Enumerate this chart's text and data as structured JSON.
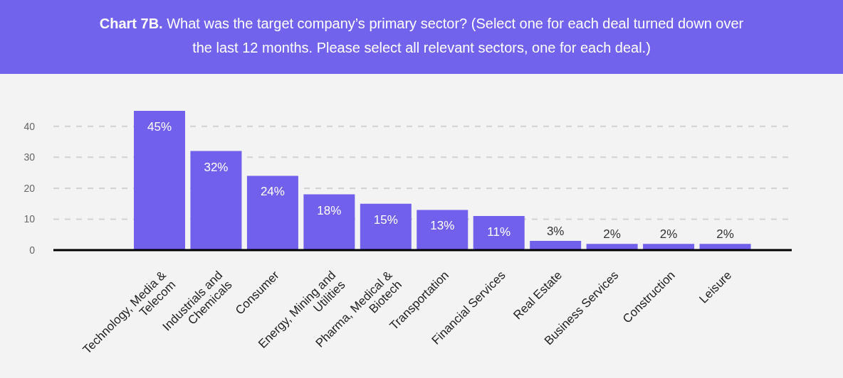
{
  "chart_data": {
    "type": "bar",
    "title": "Chart 7B.",
    "subtitle": "What was the target company’s primary sector? (Select one for each deal turned down over the last 12 months. Please select all relevant sectors, one for each deal.)",
    "categories": [
      "Technology, Media & Telecom",
      "Industrials and Chemicals",
      "Consumer",
      "Energy, Mining and Utilities",
      "Pharma, Medical & Biotech",
      "Transportation",
      "Financial Services",
      "Real Estate",
      "Business Services",
      "Construction",
      "Leisure"
    ],
    "values": [
      45,
      32,
      24,
      18,
      15,
      13,
      11,
      3,
      2,
      2,
      2
    ],
    "value_labels": [
      "45%",
      "32%",
      "24%",
      "18%",
      "15%",
      "13%",
      "11%",
      "3%",
      "2%",
      "2%",
      "2%"
    ],
    "color": "#7060eb",
    "ylim": [
      0,
      45
    ],
    "yticks": [
      0,
      10,
      20,
      30,
      40
    ],
    "grid": "y"
  }
}
